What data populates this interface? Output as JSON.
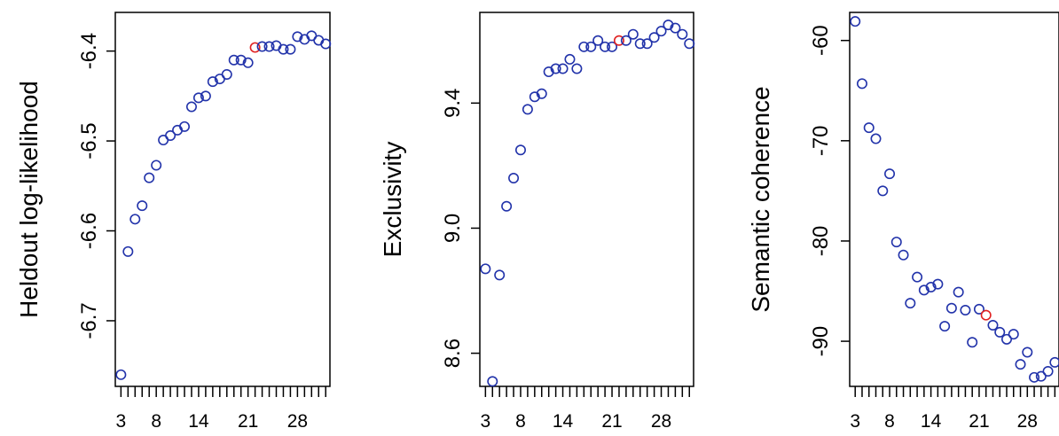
{
  "chart_data": [
    {
      "type": "scatter",
      "xlabel": "",
      "ylabel": "Heldout log-likelihood",
      "x_tick_labels": [
        "3",
        "8",
        "14",
        "21",
        "28"
      ],
      "x_tick_values": [
        3,
        8,
        14,
        21,
        28
      ],
      "y_tick_labels": [
        "-6.7",
        "-6.6",
        "-6.5",
        "-6.4"
      ],
      "y_tick_values": [
        -6.7,
        -6.6,
        -6.5,
        -6.4
      ],
      "xlim": [
        2.2,
        32.6
      ],
      "ylim": [
        -6.773,
        -6.357
      ],
      "x": [
        3,
        4,
        5,
        6,
        7,
        8,
        9,
        10,
        11,
        12,
        13,
        14,
        15,
        16,
        17,
        18,
        19,
        20,
        21,
        22,
        23,
        24,
        25,
        26,
        27,
        28,
        29,
        30,
        31,
        32
      ],
      "y": [
        -6.76,
        -6.623,
        -6.587,
        -6.572,
        -6.541,
        -6.527,
        -6.499,
        -6.494,
        -6.488,
        -6.484,
        -6.462,
        -6.452,
        -6.45,
        -6.434,
        -6.431,
        -6.426,
        -6.41,
        -6.41,
        -6.413,
        -6.396,
        -6.395,
        -6.395,
        -6.394,
        -6.398,
        -6.398,
        -6.384,
        -6.387,
        -6.383,
        -6.388,
        -6.392
      ],
      "highlight_index": 19,
      "point_color": "#2233aa",
      "highlight_color": "#e02020"
    },
    {
      "type": "scatter",
      "xlabel": "",
      "ylabel": "Exclusivity",
      "x_tick_labels": [
        "3",
        "8",
        "14",
        "21",
        "28"
      ],
      "x_tick_values": [
        3,
        8,
        14,
        21,
        28
      ],
      "y_tick_labels": [
        "8.6",
        "9.0",
        "9.4"
      ],
      "y_tick_values": [
        8.6,
        9.0,
        9.4
      ],
      "xlim": [
        2.2,
        32.6
      ],
      "ylim": [
        8.494,
        9.69
      ],
      "x": [
        3,
        4,
        5,
        6,
        7,
        8,
        9,
        10,
        11,
        12,
        13,
        14,
        15,
        16,
        17,
        18,
        19,
        20,
        21,
        22,
        23,
        24,
        25,
        26,
        27,
        28,
        29,
        30,
        31,
        32
      ],
      "y": [
        8.87,
        8.51,
        8.85,
        9.07,
        9.16,
        9.25,
        9.38,
        9.42,
        9.43,
        9.5,
        9.51,
        9.51,
        9.54,
        9.51,
        9.58,
        9.58,
        9.6,
        9.58,
        9.58,
        9.6,
        9.6,
        9.62,
        9.59,
        9.59,
        9.61,
        9.63,
        9.65,
        9.64,
        9.62,
        9.59
      ],
      "highlight_index": 19,
      "point_color": "#2233aa",
      "highlight_color": "#e02020"
    },
    {
      "type": "scatter",
      "xlabel": "",
      "ylabel": "Semantic coherence",
      "x_tick_labels": [
        "3",
        "8",
        "14",
        "21",
        "28"
      ],
      "x_tick_values": [
        3,
        8,
        14,
        21,
        28
      ],
      "y_tick_labels": [
        "-90",
        "-80",
        "-70",
        "-60"
      ],
      "y_tick_values": [
        -90,
        -80,
        -70,
        -60
      ],
      "xlim": [
        2.2,
        32.6
      ],
      "ylim": [
        -94.5,
        -57.2
      ],
      "x": [
        3,
        4,
        5,
        6,
        7,
        8,
        9,
        10,
        11,
        12,
        13,
        14,
        15,
        16,
        17,
        18,
        19,
        20,
        21,
        22,
        23,
        24,
        25,
        26,
        27,
        28,
        29,
        30,
        31,
        32
      ],
      "y": [
        -58.1,
        -64.3,
        -68.7,
        -69.8,
        -75.0,
        -73.3,
        -80.1,
        -81.4,
        -86.2,
        -83.6,
        -84.9,
        -84.6,
        -84.3,
        -88.5,
        -86.7,
        -85.1,
        -86.9,
        -90.1,
        -86.8,
        -87.4,
        -88.4,
        -89.1,
        -89.8,
        -89.3,
        -92.3,
        -91.1,
        -93.6,
        -93.5,
        -93.0,
        -92.1
      ],
      "highlight_index": 19,
      "point_color": "#2233aa",
      "highlight_color": "#e02020"
    }
  ]
}
